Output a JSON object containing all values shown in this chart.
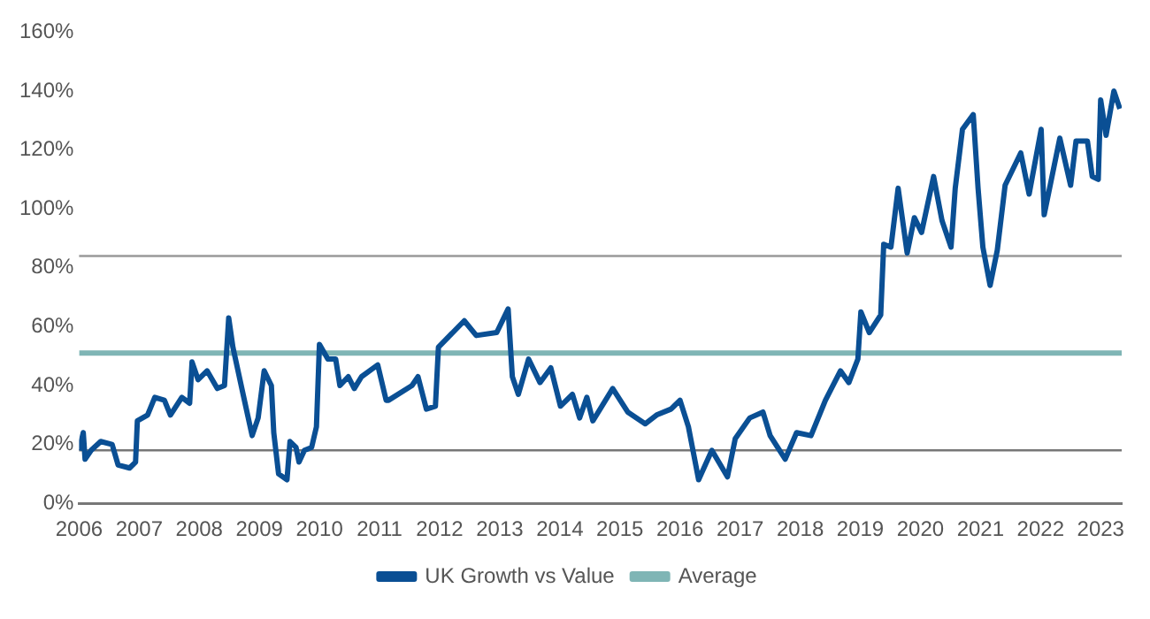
{
  "chart_data": {
    "type": "line",
    "legend": "bottom",
    "grid": false,
    "marker": "none",
    "line_style": "solid",
    "xlim": [
      2006,
      2023.35
    ],
    "xticks": [
      2006,
      2007,
      2008,
      2009,
      2010,
      2011,
      2012,
      2013,
      2014,
      2015,
      2016,
      2017,
      2018,
      2019,
      2020,
      2021,
      2022,
      2023
    ],
    "ylim": [
      0,
      160
    ],
    "yticks": [
      {
        "value": 0,
        "label": "0%"
      },
      {
        "value": 20,
        "label": "20%"
      },
      {
        "value": 40,
        "label": "40%"
      },
      {
        "value": 60,
        "label": "60%"
      },
      {
        "value": 80,
        "label": "80%"
      },
      {
        "value": 100,
        "label": "100%"
      },
      {
        "value": 120,
        "label": "120%"
      },
      {
        "value": 140,
        "label": "140%"
      },
      {
        "value": 160,
        "label": "160%"
      }
    ],
    "ref_lines": [
      {
        "axis": "y",
        "value": 84,
        "color": "#999999"
      },
      {
        "axis": "y",
        "value": 18,
        "color": "#777777"
      }
    ],
    "series": [
      {
        "name": "UK Growth vs Value",
        "color": "#0a4f94",
        "x": [
          2006.0,
          2006.07,
          2006.1,
          2006.2,
          2006.36,
          2006.55,
          2006.65,
          2006.84,
          2006.94,
          2006.97,
          2007.14,
          2007.26,
          2007.42,
          2007.52,
          2007.71,
          2007.84,
          2007.88,
          2007.98,
          2008.13,
          2008.3,
          2008.42,
          2008.49,
          2008.56,
          2008.73,
          2008.88,
          2008.98,
          2009.08,
          2009.2,
          2009.24,
          2009.32,
          2009.46,
          2009.51,
          2009.61,
          2009.66,
          2009.75,
          2009.87,
          2009.95,
          2010.0,
          2010.14,
          2010.27,
          2010.34,
          2010.48,
          2010.58,
          2010.7,
          2010.97,
          2011.11,
          2011.15,
          2011.54,
          2011.64,
          2011.78,
          2011.93,
          2011.98,
          2012.17,
          2012.41,
          2012.61,
          2012.95,
          2013.14,
          2013.21,
          2013.31,
          2013.48,
          2013.67,
          2013.85,
          2014.01,
          2014.21,
          2014.33,
          2014.45,
          2014.55,
          2014.88,
          2015.13,
          2015.42,
          2015.61,
          2015.85,
          2016.0,
          2016.14,
          2016.31,
          2016.53,
          2016.79,
          2016.92,
          2017.16,
          2017.38,
          2017.5,
          2017.75,
          2017.94,
          2018.18,
          2018.42,
          2018.67,
          2018.81,
          2018.96,
          2019.01,
          2019.15,
          2019.34,
          2019.39,
          2019.51,
          2019.63,
          2019.78,
          2019.9,
          2020.02,
          2020.22,
          2020.36,
          2020.51,
          2020.58,
          2020.7,
          2020.88,
          2020.96,
          2021.04,
          2021.16,
          2021.28,
          2021.41,
          2021.67,
          2021.81,
          2022.01,
          2022.06,
          2022.32,
          2022.5,
          2022.59,
          2022.78,
          2022.86,
          2022.96,
          2023.0,
          2023.09,
          2023.22,
          2023.32
        ],
        "values": [
          18,
          24,
          15,
          18,
          21,
          20,
          13,
          12,
          14,
          28,
          30,
          36,
          35,
          30,
          36,
          34,
          48,
          42,
          45,
          39,
          40,
          63,
          53,
          37,
          23,
          29,
          45,
          40,
          24,
          10,
          8,
          21,
          19,
          14,
          18,
          19,
          26,
          54,
          49,
          49,
          40,
          43,
          39,
          43,
          47,
          35,
          35,
          40,
          43,
          32,
          33,
          53,
          57,
          62,
          57,
          58,
          66,
          43,
          37,
          49,
          41,
          46,
          33,
          37,
          29,
          36,
          28,
          39,
          31,
          27,
          30,
          32,
          35,
          26,
          8,
          18,
          9,
          22,
          29,
          31,
          23,
          15,
          24,
          23,
          35,
          45,
          41,
          49,
          65,
          58,
          64,
          88,
          87,
          107,
          85,
          97,
          92,
          111,
          96,
          87,
          107,
          127,
          132,
          107,
          87,
          74,
          86,
          108,
          119,
          105,
          127,
          98,
          124,
          108,
          123,
          123,
          111,
          110,
          137,
          125,
          140,
          134
        ]
      },
      {
        "name": "Average",
        "color": "#7fb5b5",
        "x": [
          2006,
          2023.35
        ],
        "values": [
          51,
          51
        ]
      }
    ]
  }
}
